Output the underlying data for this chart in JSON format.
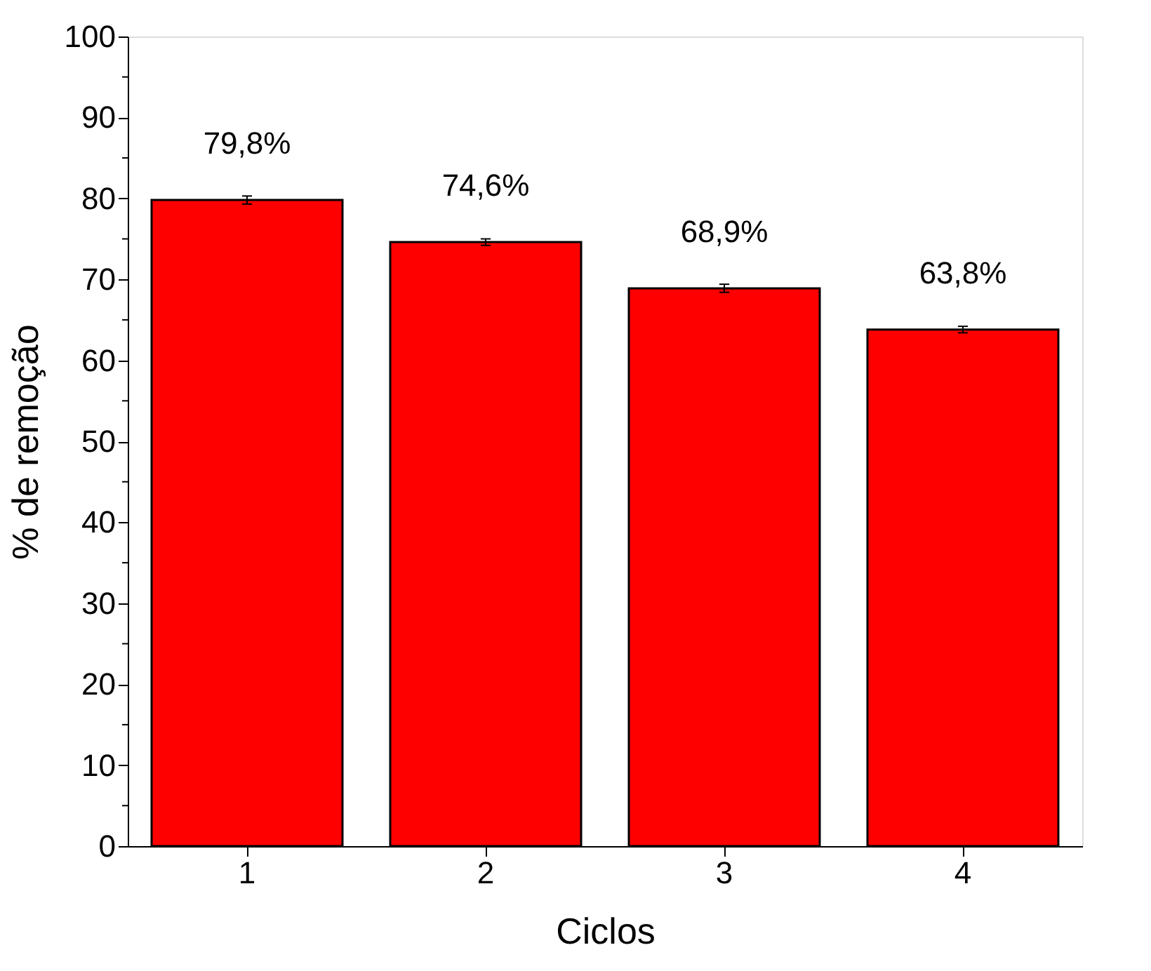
{
  "chart_data": {
    "type": "bar",
    "xlabel": "Ciclos",
    "ylabel": "% de remoção",
    "categories": [
      "1",
      "2",
      "3",
      "4"
    ],
    "values": [
      79.8,
      74.6,
      68.9,
      63.8
    ],
    "errors": [
      0.5,
      0.4,
      0.5,
      0.4
    ],
    "value_labels": [
      "79,8%",
      "74,6%",
      "68,9%",
      "63,8%"
    ],
    "color": "#ff0000",
    "ylim": [
      0,
      100
    ],
    "yticks": [
      0,
      {
        "value": 5,
        "label": null
      },
      10,
      {
        "value": 15,
        "label": null
      },
      20,
      {
        "value": 25,
        "label": null
      },
      30,
      {
        "value": 35,
        "label": null
      },
      40,
      {
        "value": 45,
        "label": null
      },
      50,
      {
        "value": 55,
        "label": null
      },
      60,
      {
        "value": 65,
        "label": null
      },
      70,
      {
        "value": 75,
        "label": null
      },
      80,
      {
        "value": 85,
        "label": null
      },
      90,
      {
        "value": 95,
        "label": null
      },
      100
    ],
    "grid": false
  }
}
